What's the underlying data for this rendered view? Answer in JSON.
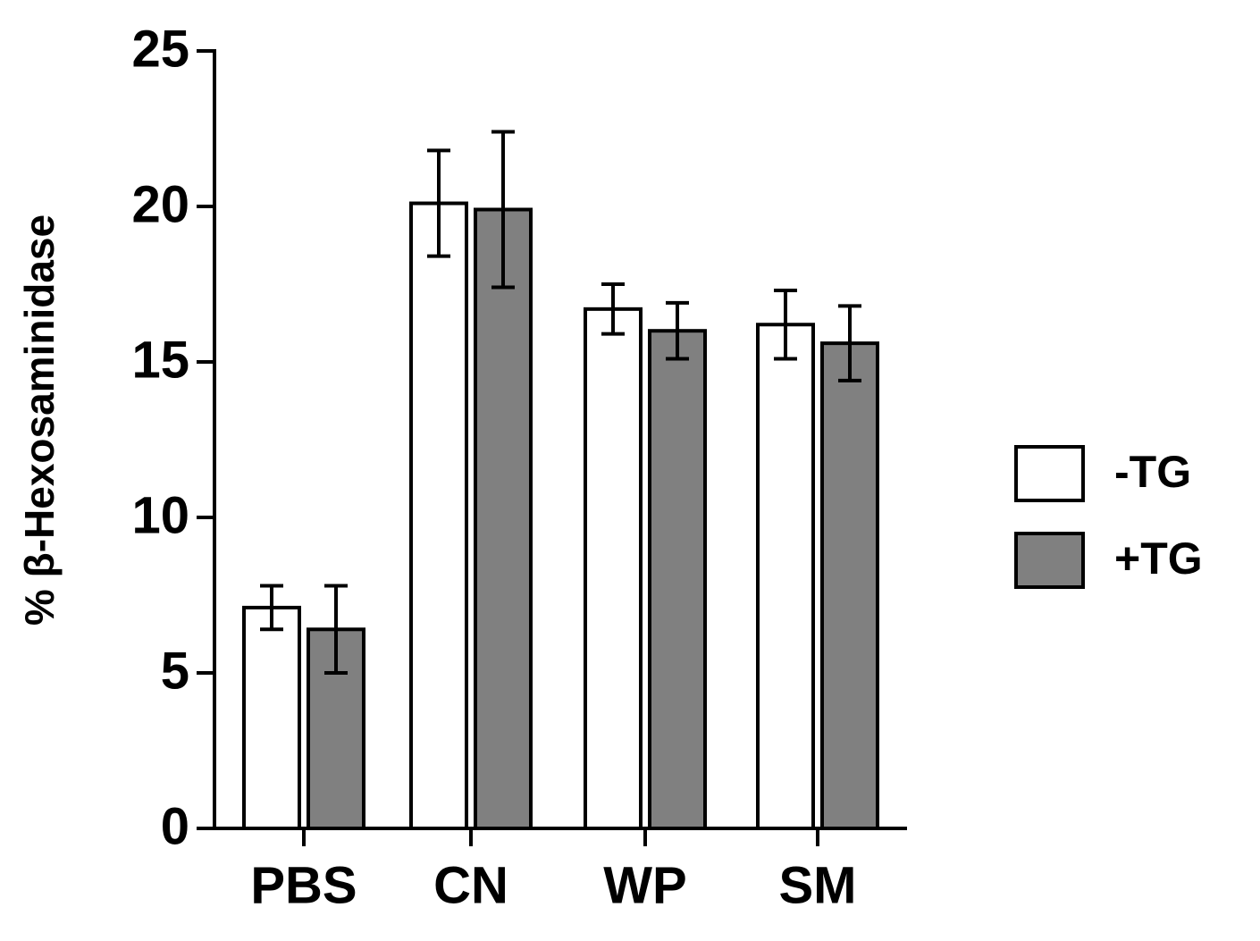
{
  "chart_data": {
    "type": "bar",
    "ylabel": "% β-Hexosaminidase",
    "categories": [
      "PBS",
      "CN",
      "WP",
      "SM"
    ],
    "series": [
      {
        "name": "-TG",
        "color": "#ffffff",
        "values": [
          7.1,
          20.1,
          16.7,
          16.2
        ],
        "errors": [
          0.7,
          1.7,
          0.8,
          1.1
        ]
      },
      {
        "name": "+TG",
        "color": "#808080",
        "values": [
          6.4,
          19.9,
          16.0,
          15.6
        ],
        "errors": [
          1.4,
          2.5,
          0.9,
          1.2
        ]
      }
    ],
    "ylim": [
      0,
      25
    ],
    "yticks": [
      0,
      5,
      10,
      15,
      20,
      25
    ],
    "grid": false,
    "legend": "right"
  }
}
